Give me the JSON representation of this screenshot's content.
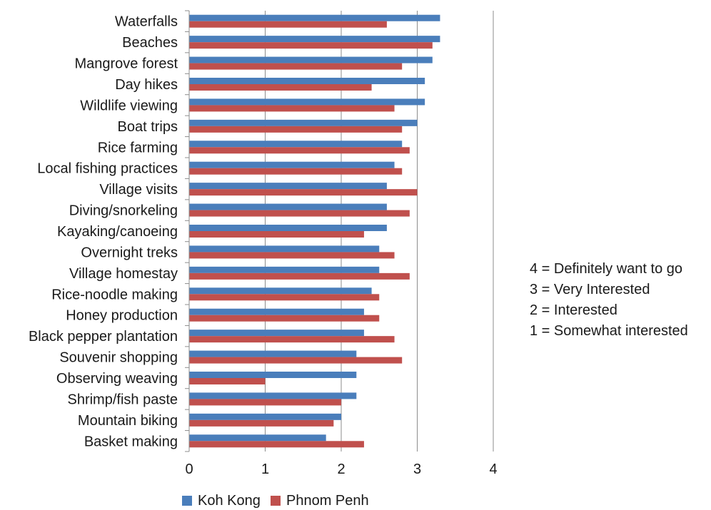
{
  "chart_data": {
    "type": "bar",
    "orientation": "horizontal",
    "title": "",
    "xlabel": "",
    "ylabel": "",
    "xlim": [
      0,
      4
    ],
    "x_ticks": [
      "0",
      "1",
      "2",
      "3",
      "4"
    ],
    "grid": true,
    "legend_position": "bottom",
    "categories": [
      "Waterfalls",
      "Beaches",
      "Mangrove forest",
      "Day hikes",
      "Wildlife viewing",
      "Boat trips",
      "Rice farming",
      "Local fishing practices",
      "Village visits",
      "Diving/snorkeling",
      "Kayaking/canoeing",
      "Overnight treks",
      "Village homestay",
      "Rice-noodle making",
      "Honey production",
      "Black pepper plantation",
      "Souvenir shopping",
      "Observing weaving",
      "Shrimp/fish paste",
      "Mountain biking",
      "Basket making"
    ],
    "series": [
      {
        "name": "Koh Kong",
        "color": "#4a7ebb",
        "values": [
          3.3,
          3.3,
          3.2,
          3.1,
          3.1,
          3.0,
          2.8,
          2.7,
          2.6,
          2.6,
          2.6,
          2.5,
          2.5,
          2.4,
          2.3,
          2.3,
          2.2,
          2.2,
          2.2,
          2.0,
          1.8
        ]
      },
      {
        "name": "Phnom Penh",
        "color": "#c0504d",
        "values": [
          2.6,
          3.2,
          2.8,
          2.4,
          2.7,
          2.8,
          2.9,
          2.8,
          3.0,
          2.9,
          2.3,
          2.7,
          2.9,
          2.5,
          2.5,
          2.7,
          2.8,
          1.0,
          2.0,
          1.9,
          2.3
        ]
      }
    ],
    "annotations": [
      "4 = Definitely want to go",
      "3 = Very Interested",
      "2 = Interested",
      "1 = Somewhat interested"
    ]
  }
}
